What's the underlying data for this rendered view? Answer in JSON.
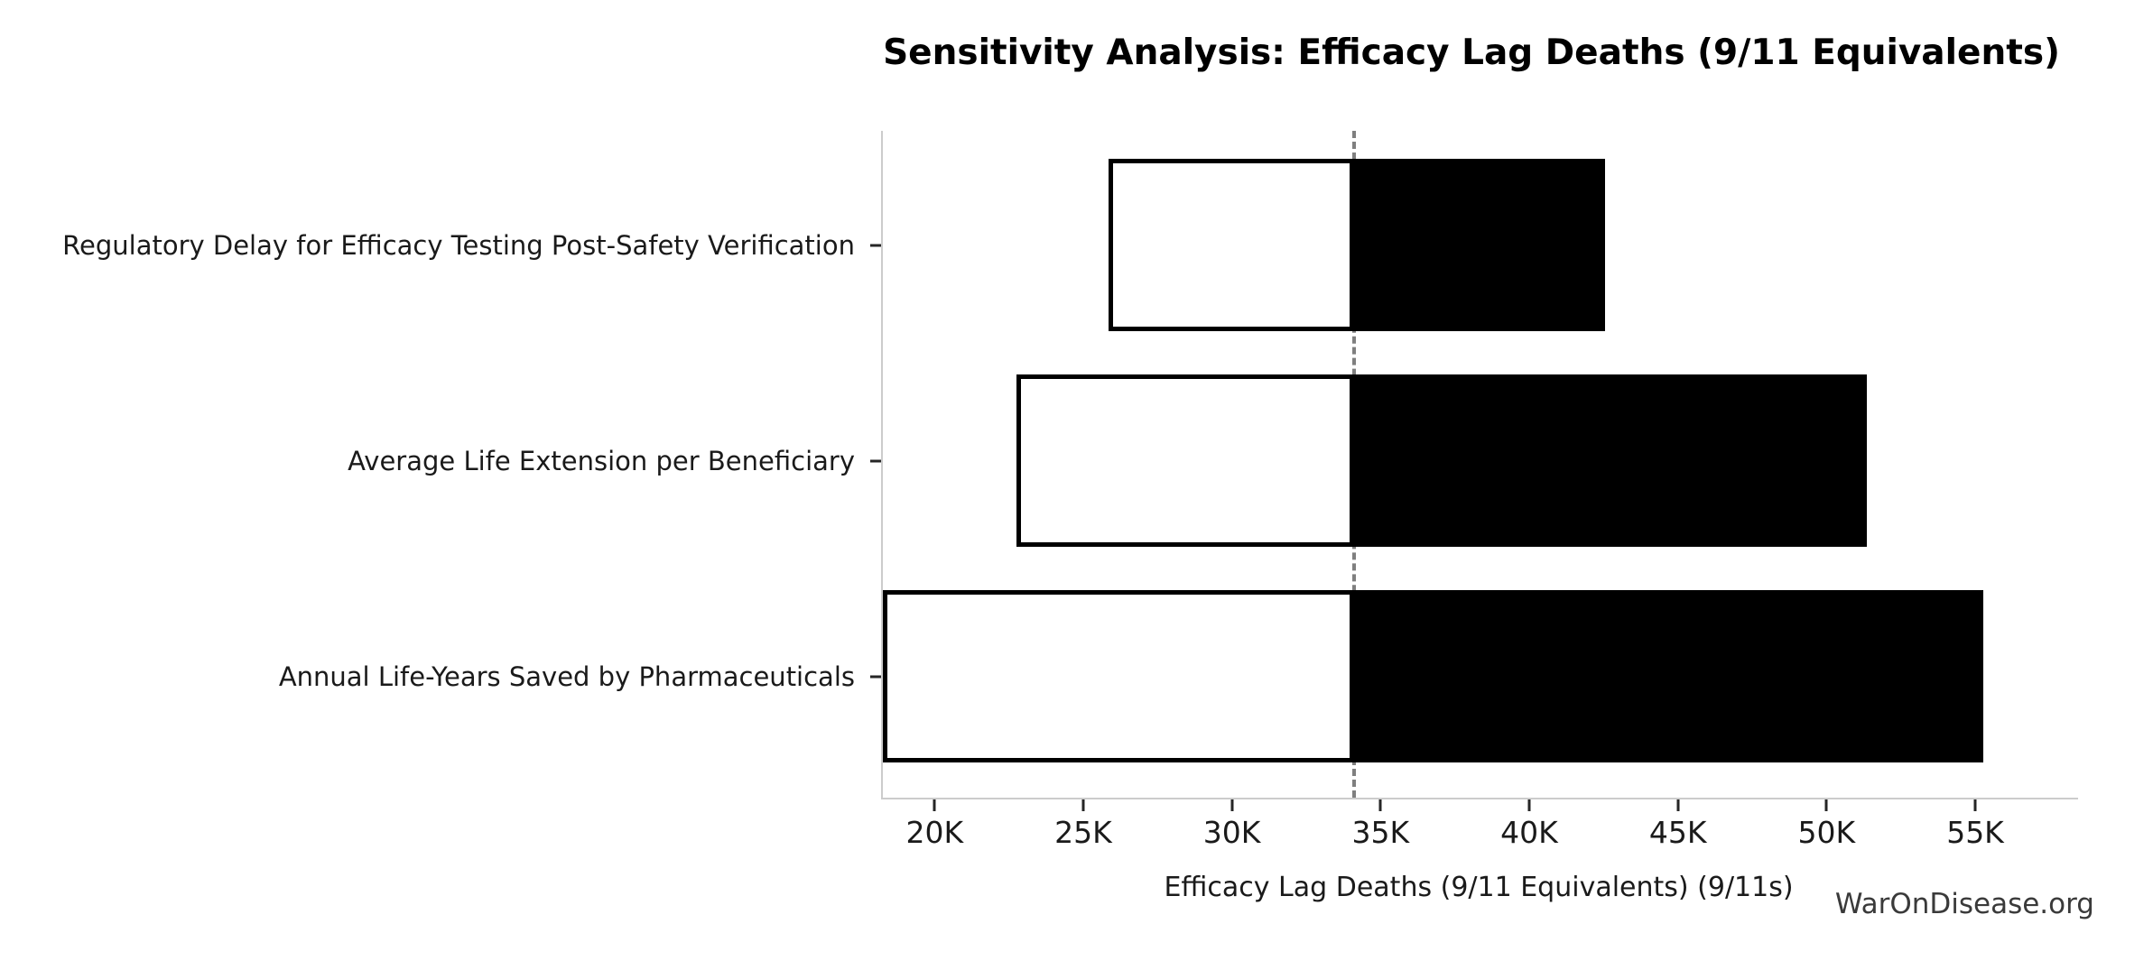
{
  "chart_data": {
    "type": "bar",
    "orientation": "horizontal",
    "variant": "tornado-sensitivity",
    "title": "Sensitivity Analysis: Efficacy Lag Deaths (9/11 Equivalents)",
    "xlabel": "Efficacy Lag Deaths (9/11 Equivalents) (9/11s)",
    "watermark": "WarOnDisease.org",
    "baseline_value": 34050,
    "axis": {
      "xmin": 18200,
      "xmax": 58400,
      "tick_values": [
        20000,
        25000,
        30000,
        35000,
        40000,
        45000,
        50000,
        55000
      ],
      "tick_labels": [
        "20K",
        "25K",
        "30K",
        "35K",
        "40K",
        "45K",
        "50K",
        "55K"
      ],
      "grid": false
    },
    "categories": [
      "Regulatory Delay for Efficacy Testing Post-Safety Verification",
      "Average Life Extension per Beneficiary",
      "Annual Life-Years Saved by Pharmaceuticals"
    ],
    "bars": [
      {
        "label": "Regulatory Delay for Efficacy Testing Post-Safety Verification",
        "low": 25800,
        "high": 42500,
        "low_clipped": false
      },
      {
        "label": "Average Life Extension per Beneficiary",
        "low": 22700,
        "high": 51300,
        "low_clipped": false
      },
      {
        "label": "Annual Life-Years Saved by Pharmaceuticals",
        "low": 18200,
        "high": 55200,
        "low_clipped": true
      }
    ],
    "colors": {
      "low_fill": "#ffffff",
      "high_fill": "#000000",
      "bar_border": "#000000",
      "baseline_line": "#7f7f7f",
      "spine": "#cccccc",
      "tick": "#262626",
      "text": "#1a1a1a",
      "title": "#000000",
      "watermark": "#3a3a3a"
    }
  }
}
